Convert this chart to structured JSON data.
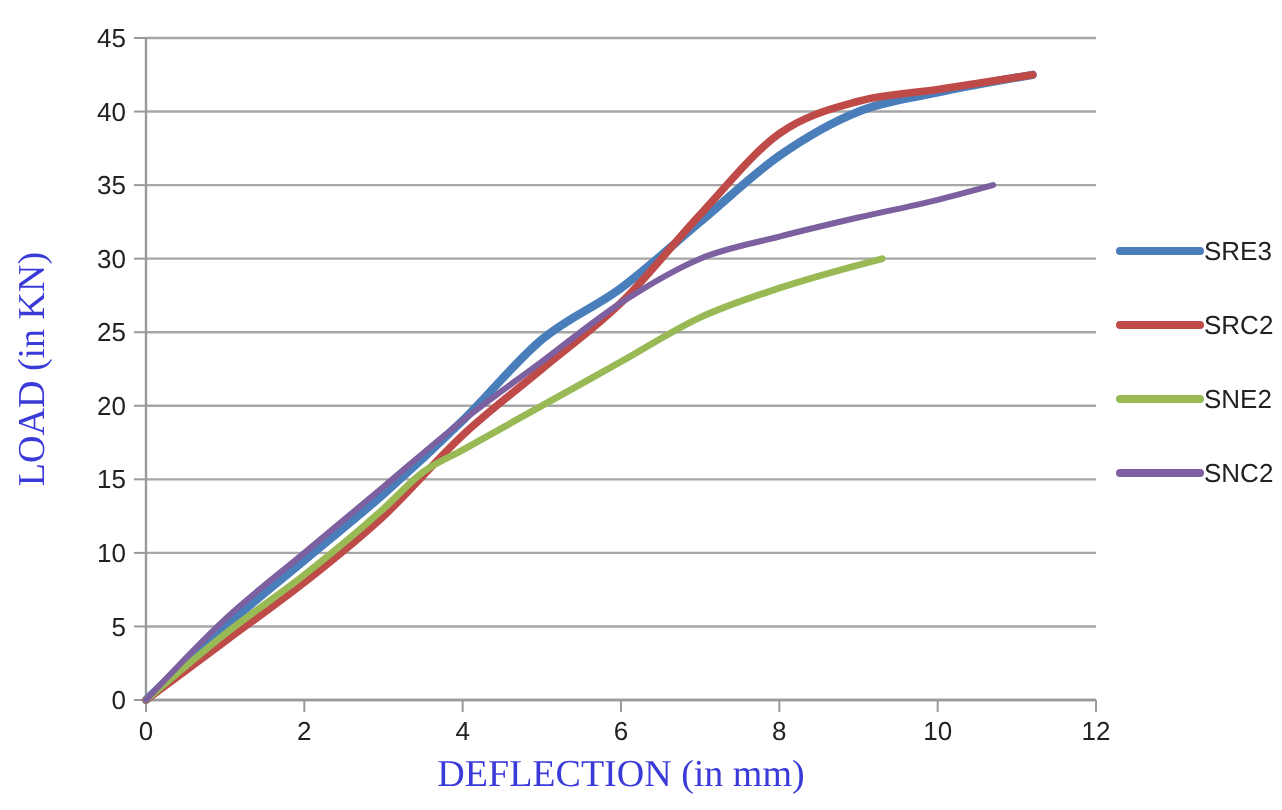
{
  "chart_data": {
    "type": "line",
    "xlabel": "DEFLECTION (in mm)",
    "ylabel": "LOAD (in KN)",
    "xlim": [
      0,
      12
    ],
    "xticks": [
      0,
      2,
      4,
      6,
      8,
      10,
      12
    ],
    "ylim": [
      0,
      45
    ],
    "yticks": [
      0,
      5,
      10,
      15,
      20,
      25,
      30,
      35,
      40,
      45
    ],
    "grid": "y",
    "legend": "right",
    "marker": "none",
    "line_style": "solid",
    "series": [
      {
        "name": "SRE3",
        "color": "#4a7ebb",
        "x": [
          0,
          1,
          2,
          3,
          4,
          5,
          6,
          7,
          8,
          9,
          10,
          11.2
        ],
        "values": [
          0,
          5,
          9.5,
          14,
          19,
          24.5,
          28,
          32.5,
          37,
          40,
          41.3,
          42.5
        ]
      },
      {
        "name": "SRC2",
        "color": "#be4b48",
        "x": [
          0,
          1,
          2,
          3,
          4,
          5,
          6,
          7,
          8,
          9,
          10,
          11.2
        ],
        "values": [
          0,
          4,
          8,
          12.5,
          18,
          22.5,
          27,
          33,
          38.5,
          40.7,
          41.5,
          42.5
        ]
      },
      {
        "name": "SNE2",
        "color": "#98b954",
        "x": [
          0,
          1,
          2,
          3,
          3.5,
          4,
          5,
          6,
          7,
          8,
          9.3
        ],
        "values": [
          0,
          4.5,
          8.5,
          13,
          15.5,
          17,
          20,
          23,
          26,
          28,
          30
        ]
      },
      {
        "name": "SNC2",
        "color": "#7d60a0",
        "x": [
          0,
          1,
          2,
          3,
          4,
          5,
          6,
          7,
          8,
          9,
          10,
          10.7
        ],
        "values": [
          0,
          5.5,
          10,
          14.5,
          19,
          23,
          27,
          30,
          31.5,
          32.8,
          34,
          35
        ]
      }
    ]
  }
}
